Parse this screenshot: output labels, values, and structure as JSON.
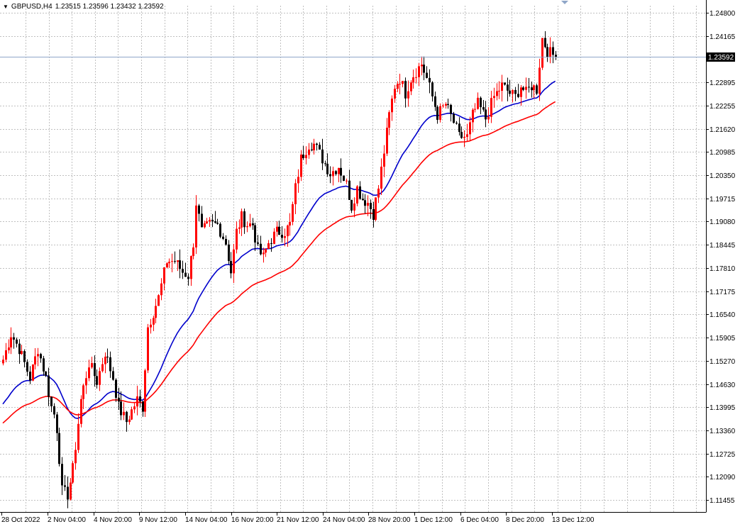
{
  "header": {
    "symbol_tf": "GBPUSD,H4",
    "ohlc": "1.23515 1.23596 1.23432 1.23592"
  },
  "colors": {
    "bull": "#ff0000",
    "bear": "#000000",
    "ma_fast": "#0000cc",
    "ma_slow": "#ff0000",
    "grid": "#c0c0c0",
    "price_tag_bg": "#000000",
    "price_tag_fg": "#ffffff",
    "price_line": "#8fa6c8"
  },
  "chart_data": {
    "type": "candlestick",
    "ylim": [
      1.1115,
      1.2505
    ],
    "y_ticks": [
      "1.24800",
      "1.24165",
      "1.23592",
      "1.22895",
      "1.22255",
      "1.21620",
      "1.20985",
      "1.20350",
      "1.19715",
      "1.19080",
      "1.18445",
      "1.17810",
      "1.17175",
      "1.16540",
      "1.15905",
      "1.15270",
      "1.14630",
      "1.13995",
      "1.13360",
      "1.12725",
      "1.12090",
      "1.11455"
    ],
    "x_labels": [
      "28 Oct 2022",
      "2 Nov 04:00",
      "4 Nov 20:00",
      "9 Nov 12:00",
      "14 Nov 04:00",
      "16 Nov 20:00",
      "21 Nov 12:00",
      "24 Nov 04:00",
      "28 Nov 20:00",
      "1 Dec 12:00",
      "6 Dec 04:00",
      "8 Dec 20:00",
      "13 Dec 12:00"
    ],
    "current_price": "1.23592",
    "ma_fast_name": "",
    "ma_slow_name": "",
    "anchors": [
      [
        0,
        1.153
      ],
      [
        3,
        1.16
      ],
      [
        6,
        1.156
      ],
      [
        8,
        1.152
      ],
      [
        10,
        1.148
      ],
      [
        13,
        1.156
      ],
      [
        16,
        1.148
      ],
      [
        18,
        1.14
      ],
      [
        19,
        1.138
      ],
      [
        20,
        1.134
      ],
      [
        21,
        1.126
      ],
      [
        22,
        1.117
      ],
      [
        24,
        1.116
      ],
      [
        26,
        1.123
      ],
      [
        29,
        1.142
      ],
      [
        32,
        1.152
      ],
      [
        35,
        1.147
      ],
      [
        38,
        1.155
      ],
      [
        41,
        1.148
      ],
      [
        43,
        1.14
      ],
      [
        46,
        1.136
      ],
      [
        48,
        1.139
      ],
      [
        50,
        1.142
      ],
      [
        52,
        1.14
      ],
      [
        54,
        1.162
      ],
      [
        58,
        1.17
      ],
      [
        61,
        1.18
      ],
      [
        64,
        1.18
      ],
      [
        67,
        1.177
      ],
      [
        69,
        1.176
      ],
      [
        71,
        1.185
      ],
      [
        72,
        1.196
      ],
      [
        74,
        1.188
      ],
      [
        77,
        1.19
      ],
      [
        80,
        1.19
      ],
      [
        83,
        1.185
      ],
      [
        85,
        1.177
      ],
      [
        87,
        1.188
      ],
      [
        89,
        1.192
      ],
      [
        91,
        1.19
      ],
      [
        93,
        1.19
      ],
      [
        95,
        1.183
      ],
      [
        97,
        1.181
      ],
      [
        99,
        1.185
      ],
      [
        102,
        1.188
      ],
      [
        105,
        1.188
      ],
      [
        107,
        1.19
      ],
      [
        109,
        1.2
      ],
      [
        111,
        1.208
      ],
      [
        114,
        1.212
      ],
      [
        116,
        1.212
      ],
      [
        119,
        1.208
      ],
      [
        122,
        1.204
      ],
      [
        125,
        1.206
      ],
      [
        128,
        1.201
      ],
      [
        130,
        1.195
      ],
      [
        132,
        1.2
      ],
      [
        134,
        1.197
      ],
      [
        136,
        1.196
      ],
      [
        138,
        1.193
      ],
      [
        140,
        1.2
      ],
      [
        142,
        1.21
      ],
      [
        144,
        1.22
      ],
      [
        146,
        1.228
      ],
      [
        148,
        1.23
      ],
      [
        150,
        1.226
      ],
      [
        152,
        1.23
      ],
      [
        154,
        1.232
      ],
      [
        156,
        1.234
      ],
      [
        158,
        1.23
      ],
      [
        160,
        1.225
      ],
      [
        162,
        1.22
      ],
      [
        165,
        1.223
      ],
      [
        168,
        1.218
      ],
      [
        170,
        1.214
      ],
      [
        173,
        1.214
      ],
      [
        175,
        1.22
      ],
      [
        177,
        1.223
      ],
      [
        180,
        1.219
      ],
      [
        183,
        1.225
      ],
      [
        186,
        1.228
      ],
      [
        189,
        1.226
      ],
      [
        191,
        1.225
      ],
      [
        193,
        1.228
      ],
      [
        195,
        1.226
      ],
      [
        197,
        1.228
      ],
      [
        199,
        1.227
      ],
      [
        201,
        1.241
      ],
      [
        203,
        1.2375
      ],
      [
        206,
        1.2359
      ]
    ],
    "start_ma_fast": 1.14,
    "start_ma_slow": 1.135
  }
}
